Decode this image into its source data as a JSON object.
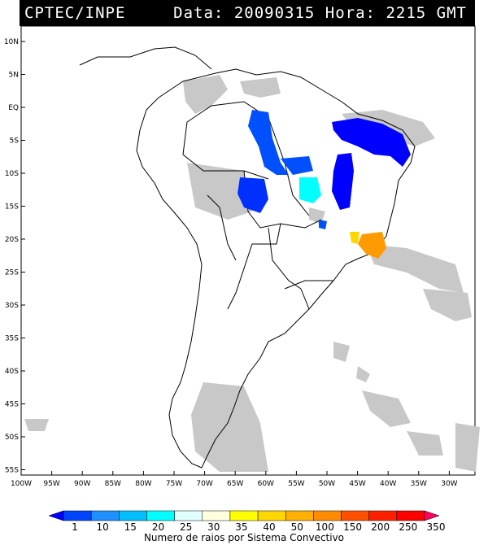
{
  "header": {
    "org": "CPTEC/INPE",
    "date_label": "Data:",
    "date": "20090315",
    "hour_label": "Hora:",
    "hour": "2215",
    "tz": "GMT"
  },
  "map": {
    "lon_ticks": [
      "100W",
      "95W",
      "90W",
      "85W",
      "80W",
      "75W",
      "70W",
      "65W",
      "60W",
      "55W",
      "50W",
      "45W",
      "40W",
      "35W",
      "30W"
    ],
    "lat_ticks": [
      "10N",
      "5N",
      "EQ",
      "5S",
      "10S",
      "15S",
      "20S",
      "25S",
      "30S",
      "35S",
      "40S",
      "45S",
      "50S",
      "55S"
    ]
  },
  "colorbar": {
    "labels": [
      "1",
      "10",
      "15",
      "20",
      "25",
      "30",
      "35",
      "40",
      "50",
      "100",
      "150",
      "200",
      "250",
      "350"
    ],
    "colors": [
      "#0000ff",
      "#0044ff",
      "#1e90ff",
      "#00bfff",
      "#00ffff",
      "#e0ffff",
      "#ffffe0",
      "#ffff00",
      "#ffd700",
      "#ffb000",
      "#ff8c00",
      "#ff5000",
      "#ff2000",
      "#ff0000",
      "#ff0060"
    ],
    "title": "Numero de raios por Sistema Convectivo"
  },
  "colors": {
    "land_outline": "#000000",
    "cloud": "#c8c8c8",
    "header_bg": "#000000"
  }
}
